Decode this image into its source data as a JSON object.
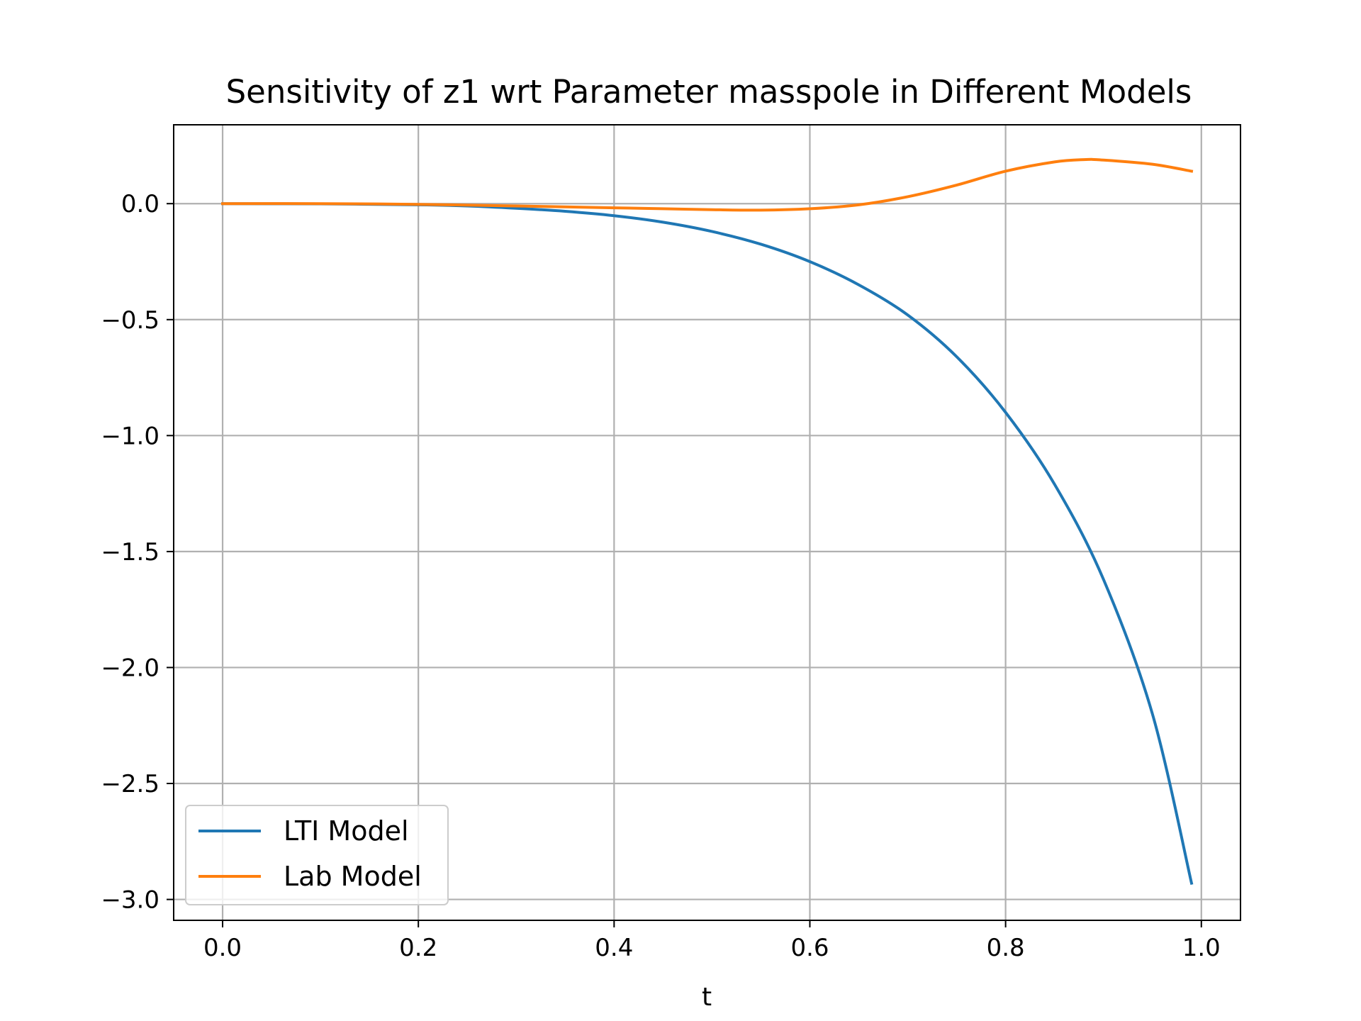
{
  "chart_data": {
    "type": "line",
    "title": "Sensitivity of z1 wrt Parameter masspole in Different Models",
    "xlabel": "t",
    "ylabel": "",
    "xlim": [
      -0.05,
      1.04
    ],
    "ylim": [
      -3.09,
      0.34
    ],
    "grid": true,
    "legend_position": "lower-left",
    "xticks": [
      0.0,
      0.2,
      0.4,
      0.6,
      0.8,
      1.0
    ],
    "xtick_labels": [
      "0.0",
      "0.2",
      "0.4",
      "0.6",
      "0.8",
      "1.0"
    ],
    "yticks": [
      0.0,
      -0.5,
      -1.0,
      -1.5,
      -2.0,
      -2.5,
      -3.0
    ],
    "ytick_labels": [
      "0.0",
      "−0.5",
      "−1.0",
      "−1.5",
      "−2.0",
      "−2.5",
      "−3.0"
    ],
    "series": [
      {
        "name": "LTI Model",
        "color": "#1f77b4",
        "x": [
          0.0,
          0.1,
          0.2,
          0.25,
          0.3,
          0.35,
          0.4,
          0.45,
          0.5,
          0.55,
          0.6,
          0.65,
          0.7,
          0.75,
          0.8,
          0.85,
          0.9,
          0.95,
          0.99
        ],
        "y": [
          0.0,
          -0.001,
          -0.005,
          -0.01,
          -0.02,
          -0.033,
          -0.052,
          -0.08,
          -0.12,
          -0.175,
          -0.25,
          -0.35,
          -0.48,
          -0.66,
          -0.9,
          -1.21,
          -1.62,
          -2.2,
          -2.93
        ]
      },
      {
        "name": "Lab Model",
        "color": "#ff7f0e",
        "x": [
          0.0,
          0.1,
          0.2,
          0.3,
          0.4,
          0.45,
          0.5,
          0.55,
          0.6,
          0.65,
          0.7,
          0.75,
          0.8,
          0.85,
          0.88,
          0.9,
          0.95,
          0.99
        ],
        "y": [
          0.0,
          0.0,
          -0.003,
          -0.01,
          -0.018,
          -0.022,
          -0.026,
          -0.028,
          -0.022,
          -0.005,
          0.03,
          0.08,
          0.14,
          0.18,
          0.19,
          0.188,
          0.17,
          0.14
        ]
      }
    ]
  }
}
